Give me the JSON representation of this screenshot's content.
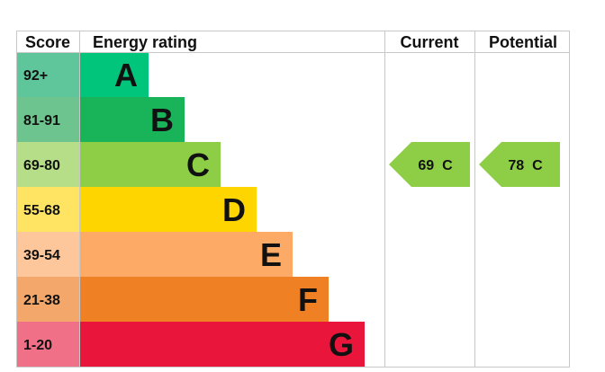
{
  "chart_data": {
    "type": "bar",
    "headers": {
      "score": "Score",
      "rating": "Energy rating",
      "current": "Current",
      "potential": "Potential"
    },
    "bands": [
      {
        "score": "92+",
        "letter": "A",
        "color": "#00c57a",
        "score_color": "#5fc59b"
      },
      {
        "score": "81-91",
        "letter": "B",
        "color": "#19b459",
        "score_color": "#6ec48e"
      },
      {
        "score": "69-80",
        "letter": "C",
        "color": "#8dce46",
        "score_color": "#b6de88"
      },
      {
        "score": "55-68",
        "letter": "D",
        "color": "#ffd500",
        "score_color": "#ffe464"
      },
      {
        "score": "39-54",
        "letter": "E",
        "color": "#fcaa65",
        "score_color": "#fdc79b"
      },
      {
        "score": "21-38",
        "letter": "F",
        "color": "#ef8023",
        "score_color": "#f3a76a"
      },
      {
        "score": "1-20",
        "letter": "G",
        "color": "#e9153b",
        "score_color": "#f07187"
      }
    ],
    "current": {
      "value": 69,
      "letter": "C",
      "label": "69  C",
      "color": "#8dce46"
    },
    "potential": {
      "value": 78,
      "letter": "C",
      "label": "78  C",
      "color": "#8dce46"
    }
  }
}
